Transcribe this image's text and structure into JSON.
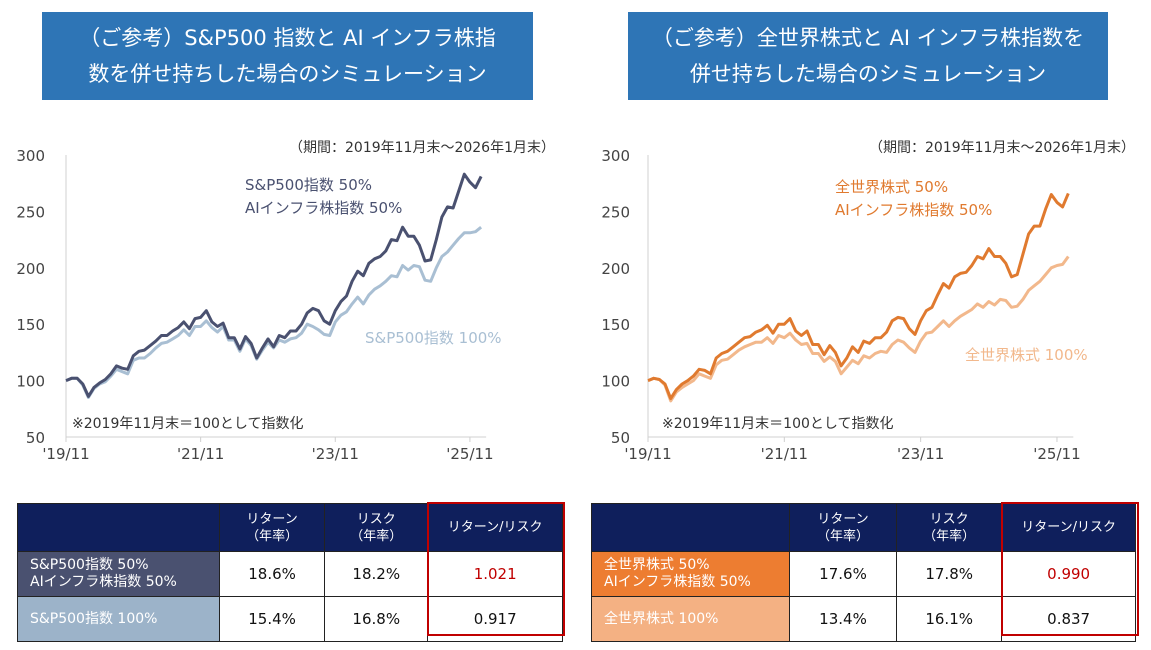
{
  "titles": {
    "left": [
      "（ご参考）S&P500 指数と AI インフラ株指",
      "数を併せ持ちした場合のシミュレーション"
    ],
    "right": [
      "（ご参考）全世界株式と AI インフラ株指数を",
      "併せ持ちした場合のシミュレーション"
    ]
  },
  "colors": {
    "title_bg": "#2E75B6",
    "header_bg": "#0f1f5c",
    "highlight": "#c00000"
  },
  "chart_data": [
    {
      "type": "line",
      "period_note": "（期間：2019年11月末～2026年1月末）",
      "index_note": "※2019年11月末＝100として指数化",
      "xlabel": "",
      "ylabel": "",
      "ylim": [
        50,
        300
      ],
      "yticks": [
        50,
        100,
        150,
        200,
        250,
        300
      ],
      "xtick_labels": [
        "'19/11",
        "'21/11",
        "'23/11",
        "'25/11"
      ],
      "grid": false,
      "x": [
        "2019-11",
        "2019-12",
        "2020-01",
        "2020-02",
        "2020-03",
        "2020-04",
        "2020-05",
        "2020-06",
        "2020-07",
        "2020-08",
        "2020-09",
        "2020-10",
        "2020-11",
        "2020-12",
        "2021-01",
        "2021-02",
        "2021-03",
        "2021-04",
        "2021-05",
        "2021-06",
        "2021-07",
        "2021-08",
        "2021-09",
        "2021-10",
        "2021-11",
        "2021-12",
        "2022-01",
        "2022-02",
        "2022-03",
        "2022-04",
        "2022-05",
        "2022-06",
        "2022-07",
        "2022-08",
        "2022-09",
        "2022-10",
        "2022-11",
        "2022-12",
        "2023-01",
        "2023-02",
        "2023-03",
        "2023-04",
        "2023-05",
        "2023-06",
        "2023-07",
        "2023-08",
        "2023-09",
        "2023-10",
        "2023-11",
        "2023-12",
        "2024-01",
        "2024-02",
        "2024-03",
        "2024-04",
        "2024-05",
        "2024-06",
        "2024-07",
        "2024-08",
        "2024-09",
        "2024-10",
        "2024-11",
        "2024-12",
        "2025-01",
        "2025-02",
        "2025-03",
        "2025-04",
        "2025-05",
        "2025-06",
        "2025-07",
        "2025-08",
        "2025-09",
        "2025-10",
        "2025-11",
        "2025-12",
        "2026-01"
      ],
      "series": [
        {
          "name": [
            "S&P500指数  50%",
            "AIインフラ株指数  50%"
          ],
          "color": "#4a5170",
          "values": [
            100,
            102,
            102,
            97,
            86,
            94,
            98,
            101,
            106,
            113,
            111,
            110,
            122,
            126,
            127,
            131,
            135,
            140,
            140,
            144,
            147,
            152,
            146,
            155,
            156,
            162,
            152,
            148,
            151,
            138,
            138,
            128,
            139,
            133,
            120,
            129,
            137,
            130,
            140,
            138,
            144,
            144,
            150,
            160,
            164,
            162,
            153,
            150,
            162,
            170,
            175,
            188,
            197,
            193,
            204,
            208,
            210,
            215,
            225,
            224,
            236,
            228,
            228,
            220,
            206,
            207,
            225,
            245,
            254,
            253,
            268,
            283,
            276,
            271,
            281
          ]
        },
        {
          "name": [
            "S&P500指数  100%"
          ],
          "color": "#a9bfd3",
          "values": [
            100,
            102,
            102,
            96,
            85,
            93,
            97,
            99,
            104,
            110,
            108,
            106,
            118,
            120,
            120,
            124,
            129,
            133,
            134,
            137,
            140,
            145,
            140,
            148,
            148,
            153,
            147,
            143,
            148,
            136,
            136,
            126,
            137,
            131,
            119,
            127,
            134,
            129,
            136,
            134,
            137,
            138,
            142,
            150,
            148,
            145,
            141,
            140,
            152,
            158,
            161,
            168,
            174,
            168,
            176,
            181,
            184,
            188,
            193,
            192,
            202,
            198,
            202,
            201,
            189,
            188,
            200,
            210,
            214,
            220,
            226,
            231,
            231,
            232,
            236
          ]
        }
      ]
    },
    {
      "type": "line",
      "period_note": "（期間：2019年11月末～2026年1月末）",
      "index_note": "※2019年11月末＝100として指数化",
      "xlabel": "",
      "ylabel": "",
      "ylim": [
        50,
        300
      ],
      "yticks": [
        50,
        100,
        150,
        200,
        250,
        300
      ],
      "xtick_labels": [
        "'19/11",
        "'21/11",
        "'23/11",
        "'25/11"
      ],
      "grid": false,
      "x": [
        "2019-11",
        "2019-12",
        "2020-01",
        "2020-02",
        "2020-03",
        "2020-04",
        "2020-05",
        "2020-06",
        "2020-07",
        "2020-08",
        "2020-09",
        "2020-10",
        "2020-11",
        "2020-12",
        "2021-01",
        "2021-02",
        "2021-03",
        "2021-04",
        "2021-05",
        "2021-06",
        "2021-07",
        "2021-08",
        "2021-09",
        "2021-10",
        "2021-11",
        "2021-12",
        "2022-01",
        "2022-02",
        "2022-03",
        "2022-04",
        "2022-05",
        "2022-06",
        "2022-07",
        "2022-08",
        "2022-09",
        "2022-10",
        "2022-11",
        "2022-12",
        "2023-01",
        "2023-02",
        "2023-03",
        "2023-04",
        "2023-05",
        "2023-06",
        "2023-07",
        "2023-08",
        "2023-09",
        "2023-10",
        "2023-11",
        "2023-12",
        "2024-01",
        "2024-02",
        "2024-03",
        "2024-04",
        "2024-05",
        "2024-06",
        "2024-07",
        "2024-08",
        "2024-09",
        "2024-10",
        "2024-11",
        "2024-12",
        "2025-01",
        "2025-02",
        "2025-03",
        "2025-04",
        "2025-05",
        "2025-06",
        "2025-07",
        "2025-08",
        "2025-09",
        "2025-10",
        "2025-11",
        "2025-12",
        "2026-01"
      ],
      "series": [
        {
          "name": [
            "全世界株式  50%",
            "AIインフラ株指数  50%"
          ],
          "color": "#E07A2F",
          "values": [
            100,
            102,
            101,
            97,
            84,
            92,
            97,
            100,
            104,
            110,
            109,
            106,
            120,
            124,
            126,
            130,
            134,
            138,
            139,
            143,
            145,
            149,
            142,
            150,
            150,
            155,
            144,
            140,
            144,
            132,
            132,
            123,
            131,
            125,
            113,
            120,
            130,
            125,
            135,
            133,
            138,
            138,
            143,
            153,
            156,
            155,
            146,
            141,
            153,
            162,
            165,
            176,
            186,
            182,
            192,
            195,
            196,
            202,
            210,
            208,
            217,
            210,
            210,
            204,
            192,
            194,
            212,
            230,
            237,
            237,
            252,
            265,
            258,
            254,
            266
          ]
        },
        {
          "name": [
            "全世界株式  100%"
          ],
          "color": "#F2B88C",
          "values": [
            100,
            102,
            101,
            96,
            82,
            90,
            94,
            97,
            100,
            106,
            104,
            102,
            114,
            118,
            119,
            123,
            127,
            130,
            132,
            134,
            134,
            138,
            133,
            140,
            138,
            142,
            136,
            132,
            133,
            124,
            124,
            117,
            121,
            117,
            106,
            112,
            118,
            115,
            122,
            120,
            124,
            126,
            125,
            132,
            136,
            134,
            129,
            125,
            135,
            142,
            143,
            148,
            153,
            148,
            153,
            157,
            160,
            163,
            168,
            165,
            170,
            167,
            172,
            171,
            165,
            166,
            172,
            180,
            184,
            188,
            194,
            200,
            202,
            203,
            210
          ]
        }
      ]
    }
  ],
  "tables": {
    "left": {
      "headers": [
        "",
        "リターン\n（年率）",
        "リスク\n（年率）",
        "リターン/リスク"
      ],
      "rows": [
        {
          "label": "S&P500指数  50%\nAIインフラ株指数  50%",
          "bg": "#4a5170",
          "return": "18.6%",
          "risk": "18.2%",
          "ratio": "1.021",
          "ratio_color": "#c00000"
        },
        {
          "label": "S&P500指数  100%",
          "bg": "#9cb3c9",
          "return": "15.4%",
          "risk": "16.8%",
          "ratio": "0.917",
          "ratio_color": "#111111"
        }
      ]
    },
    "right": {
      "headers": [
        "",
        "リターン\n（年率）",
        "リスク\n（年率）",
        "リターン/リスク"
      ],
      "rows": [
        {
          "label": "全世界株式  50%\nAIインフラ株指数  50%",
          "bg": "#ED7D31",
          "return": "17.6%",
          "risk": "17.8%",
          "ratio": "0.990",
          "ratio_color": "#c00000"
        },
        {
          "label": "全世界株式  100%",
          "bg": "#F4B183",
          "return": "13.4%",
          "risk": "16.1%",
          "ratio": "0.837",
          "ratio_color": "#111111"
        }
      ]
    }
  }
}
